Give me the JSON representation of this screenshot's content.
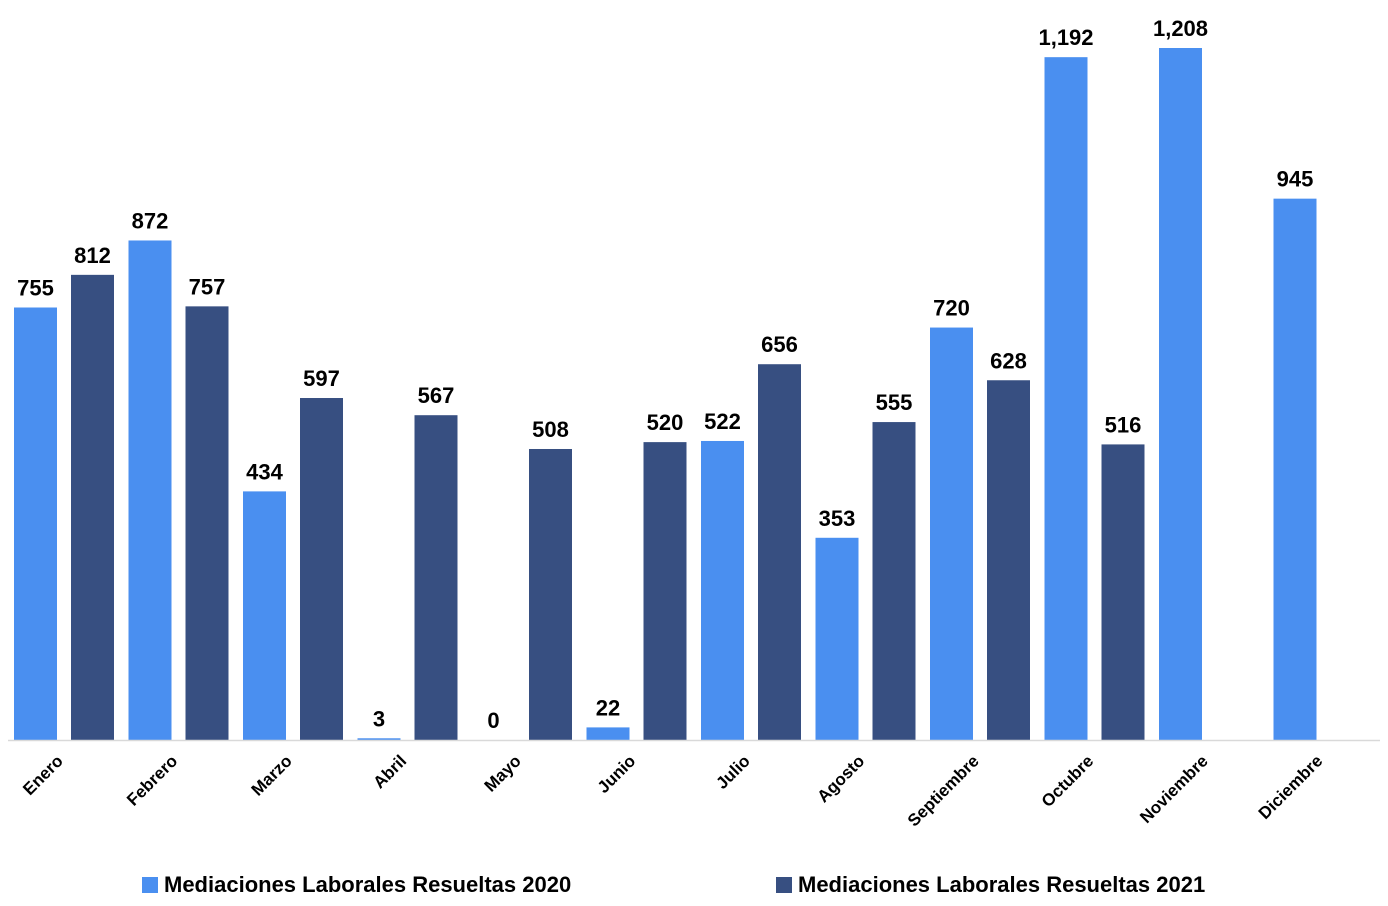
{
  "chart_data": {
    "type": "bar",
    "title": "",
    "xlabel": "",
    "ylabel": "",
    "ylim": [
      0,
      1208
    ],
    "grid": false,
    "legend_position": "bottom",
    "categories": [
      "Enero",
      "Febrero",
      "Marzo",
      "Abril",
      "Mayo",
      "Junio",
      "Julio",
      "Agosto",
      "Septiembre",
      "Octubre",
      "Noviembre",
      "Diciembre"
    ],
    "series": [
      {
        "name": "Mediaciones Laborales Resueltas 2020",
        "color": "#4a8ff0",
        "values": [
          755,
          872,
          434,
          3,
          0,
          22,
          522,
          353,
          720,
          1192,
          1208,
          945
        ],
        "labels": [
          "755",
          "872",
          "434",
          "3",
          "0",
          "22",
          "522",
          "353",
          "720",
          "1,192",
          "1,208",
          "945"
        ]
      },
      {
        "name": "Mediaciones Laborales Resueltas 2021",
        "color": "#374f81",
        "values": [
          812,
          757,
          597,
          567,
          508,
          520,
          656,
          555,
          628,
          516,
          null,
          null
        ],
        "labels": [
          "812",
          "757",
          "597",
          "567",
          "508",
          "520",
          "656",
          "555",
          "628",
          "516",
          "",
          ""
        ]
      }
    ]
  }
}
